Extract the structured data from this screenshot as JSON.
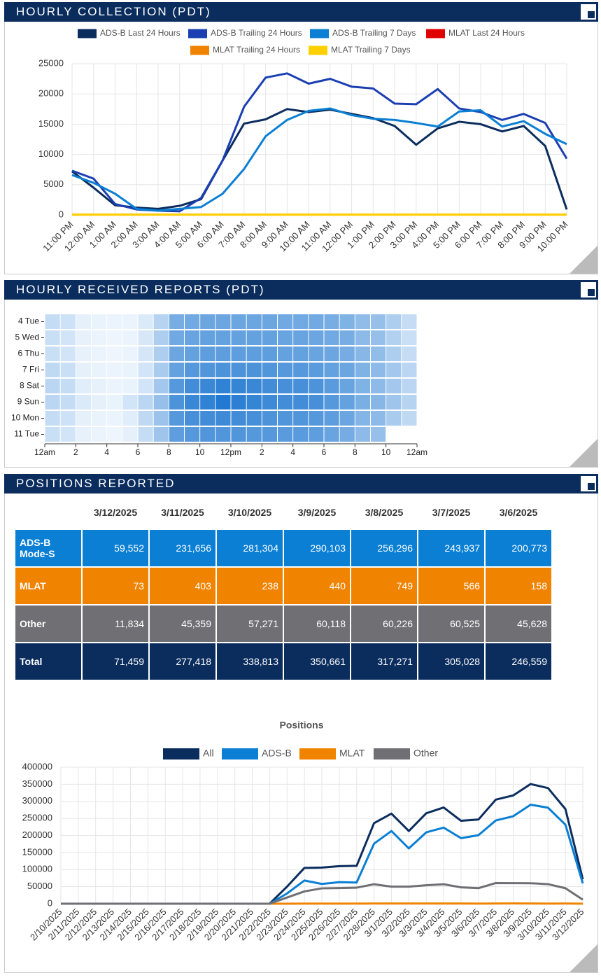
{
  "panels": [
    {
      "title": "HOURLY COLLECTION (PDT)"
    },
    {
      "title": "HOURLY RECEIVED REPORTS (PDT)"
    },
    {
      "title": "POSITIONS REPORTED"
    }
  ],
  "chart_data": [
    {
      "type": "line",
      "legend": "top",
      "grid": true,
      "categories": [
        "11:00 PM",
        "12:00 AM",
        "1:00 AM",
        "2:00 AM",
        "3:00 AM",
        "4:00 AM",
        "5:00 AM",
        "6:00 AM",
        "7:00 AM",
        "8:00 AM",
        "9:00 AM",
        "10:00 AM",
        "11:00 AM",
        "12:00 PM",
        "1:00 PM",
        "2:00 PM",
        "3:00 PM",
        "4:00 PM",
        "5:00 PM",
        "6:00 PM",
        "7:00 PM",
        "8:00 PM",
        "9:00 PM",
        "10:00 PM"
      ],
      "ylim": [
        0,
        25000
      ],
      "yticks": [
        0,
        5000,
        10000,
        15000,
        20000,
        25000
      ],
      "series": [
        {
          "name": "ADS-B Last 24 Hours",
          "color": "#0b2d5e",
          "values": [
            7200,
            4500,
            1600,
            1200,
            1000,
            1500,
            2600,
            9000,
            15100,
            15800,
            17500,
            17000,
            17400,
            16700,
            16000,
            14700,
            11600,
            14300,
            15400,
            15000,
            13800,
            14700,
            11400,
            900
          ]
        },
        {
          "name": "ADS-B Trailing 24 Hours",
          "color": "#1b3fb2",
          "values": [
            7300,
            6000,
            1800,
            900,
            700,
            600,
            2800,
            9000,
            17900,
            22700,
            23400,
            21700,
            22500,
            21200,
            20900,
            18400,
            18300,
            20800,
            17600,
            17000,
            15700,
            16700,
            15200,
            9300
          ]
        },
        {
          "name": "ADS-B Trailing 7 Days",
          "color": "#0a7fd4",
          "values": [
            6600,
            5300,
            3500,
            1000,
            700,
            1000,
            1300,
            3500,
            7600,
            13000,
            15700,
            17200,
            17600,
            16500,
            15900,
            15700,
            15200,
            14600,
            17100,
            17300,
            14600,
            15500,
            13400,
            11700
          ]
        },
        {
          "name": "MLAT Last 24 Hours",
          "color": "#e00000",
          "values": [
            60,
            60,
            60,
            60,
            60,
            60,
            60,
            60,
            60,
            60,
            60,
            60,
            60,
            60,
            60,
            60,
            60,
            60,
            60,
            60,
            60,
            60,
            60,
            60
          ]
        },
        {
          "name": "MLAT Trailing 24 Hours",
          "color": "#f08300",
          "values": [
            50,
            50,
            50,
            50,
            50,
            50,
            50,
            50,
            50,
            50,
            50,
            50,
            50,
            50,
            50,
            50,
            50,
            50,
            50,
            50,
            50,
            50,
            50,
            50
          ]
        },
        {
          "name": "MLAT Trailing 7 Days",
          "color": "#ffd000",
          "values": [
            50,
            50,
            50,
            50,
            50,
            50,
            50,
            50,
            50,
            50,
            50,
            50,
            50,
            50,
            50,
            50,
            50,
            50,
            50,
            50,
            50,
            50,
            50,
            50
          ]
        }
      ]
    },
    {
      "type": "heatmap",
      "xlim": [
        0,
        24
      ],
      "zlim": [
        0,
        100
      ],
      "colors": [
        "#f7fbff",
        "#106ecd"
      ],
      "xticks": [
        {
          "value": 0,
          "label": "12am"
        },
        2,
        4,
        6,
        8,
        10,
        {
          "value": 12,
          "label": "12pm"
        },
        {
          "value": 14,
          "label": "2"
        },
        {
          "value": 16,
          "label": "4"
        },
        {
          "value": 18,
          "label": "6"
        },
        {
          "value": 20,
          "label": "8"
        },
        {
          "value": 22,
          "label": "10"
        },
        {
          "value": 24,
          "label": "12am"
        }
      ],
      "rows": [
        "4 Tue",
        "5 Wed",
        "6 Thu",
        "7 Fri",
        "8 Sat",
        "9 Sun",
        "10 Mon",
        "11 Tue"
      ],
      "values": [
        [
          22,
          18,
          8,
          6,
          5,
          5,
          12,
          28,
          55,
          58,
          60,
          60,
          60,
          60,
          60,
          58,
          58,
          58,
          55,
          52,
          45,
          42,
          32,
          22
        ],
        [
          20,
          16,
          7,
          5,
          4,
          5,
          14,
          32,
          58,
          62,
          64,
          64,
          64,
          64,
          64,
          62,
          62,
          60,
          58,
          55,
          46,
          42,
          30,
          20
        ],
        [
          20,
          16,
          7,
          5,
          4,
          5,
          15,
          32,
          60,
          64,
          66,
          66,
          66,
          66,
          66,
          64,
          64,
          62,
          60,
          56,
          48,
          44,
          32,
          22
        ],
        [
          24,
          20,
          8,
          6,
          5,
          6,
          16,
          34,
          64,
          70,
          72,
          74,
          74,
          74,
          72,
          70,
          70,
          68,
          64,
          60,
          52,
          46,
          36,
          26
        ],
        [
          26,
          22,
          10,
          7,
          5,
          6,
          16,
          36,
          70,
          78,
          82,
          86,
          84,
          82,
          78,
          76,
          76,
          74,
          68,
          62,
          52,
          46,
          36,
          26
        ],
        [
          26,
          22,
          12,
          8,
          6,
          16,
          26,
          42,
          74,
          82,
          86,
          92,
          88,
          84,
          80,
          78,
          78,
          76,
          70,
          64,
          54,
          48,
          38,
          28
        ],
        [
          22,
          18,
          8,
          6,
          5,
          10,
          24,
          40,
          70,
          76,
          78,
          80,
          78,
          76,
          74,
          72,
          72,
          70,
          66,
          60,
          50,
          46,
          34,
          24
        ],
        [
          20,
          16,
          7,
          5,
          4,
          8,
          22,
          38,
          66,
          70,
          72,
          72,
          72,
          70,
          70,
          68,
          68,
          66,
          62,
          56,
          46,
          42,
          null,
          null
        ]
      ]
    },
    {
      "type": "line",
      "title": "Positions",
      "legend": "top",
      "grid": true,
      "categories": [
        "2/10/2025",
        "2/11/2025",
        "2/12/2025",
        "2/13/2025",
        "2/14/2025",
        "2/15/2025",
        "2/16/2025",
        "2/17/2025",
        "2/18/2025",
        "2/19/2025",
        "2/20/2025",
        "2/21/2025",
        "2/22/2025",
        "2/23/2025",
        "2/24/2025",
        "2/25/2025",
        "2/26/2025",
        "2/27/2025",
        "2/28/2025",
        "3/1/2025",
        "3/2/2025",
        "3/3/2025",
        "3/4/2025",
        "3/5/2025",
        "3/6/2025",
        "3/7/2025",
        "3/8/2025",
        "3/9/2025",
        "3/10/2025",
        "3/11/2025",
        "3/12/2025"
      ],
      "ylim": [
        0,
        400000
      ],
      "yticks": [
        0,
        50000,
        100000,
        150000,
        200000,
        250000,
        300000,
        350000,
        400000
      ],
      "series": [
        {
          "name": "All",
          "color": "#0b2d5e",
          "values": [
            0,
            0,
            0,
            0,
            0,
            0,
            0,
            0,
            0,
            0,
            0,
            0,
            0,
            50000,
            105000,
            106000,
            110000,
            111000,
            236000,
            264000,
            213000,
            265000,
            282000,
            243000,
            246559,
            305028,
            317271,
            350661,
            338813,
            277418,
            71459
          ]
        },
        {
          "name": "ADS-B",
          "color": "#0a7fd4",
          "values": [
            0,
            0,
            0,
            0,
            0,
            0,
            0,
            0,
            0,
            0,
            0,
            0,
            0,
            30000,
            68000,
            58000,
            63000,
            62000,
            176000,
            213000,
            162000,
            209000,
            223000,
            192000,
            200773,
            243937,
            256296,
            290103,
            281304,
            231656,
            59552
          ]
        },
        {
          "name": "MLAT",
          "color": "#f08300",
          "values": [
            0,
            0,
            0,
            0,
            0,
            0,
            0,
            0,
            0,
            0,
            0,
            0,
            0,
            100,
            300,
            300,
            300,
            300,
            400,
            400,
            400,
            400,
            400,
            400,
            158,
            566,
            749,
            440,
            238,
            403,
            73
          ]
        },
        {
          "name": "Other",
          "color": "#6f6f74",
          "values": [
            0,
            0,
            0,
            0,
            0,
            0,
            0,
            0,
            0,
            0,
            0,
            0,
            0,
            18000,
            36000,
            45000,
            46000,
            47000,
            57000,
            50000,
            50000,
            54000,
            57000,
            48000,
            45628,
            60525,
            60226,
            60118,
            57271,
            45359,
            11834
          ]
        }
      ]
    }
  ],
  "table": {
    "columns": [
      "3/12/2025",
      "3/11/2025",
      "3/10/2025",
      "3/9/2025",
      "3/8/2025",
      "3/7/2025",
      "3/6/2025"
    ],
    "rows": [
      {
        "label": "ADS-B Mode-S",
        "color": "#0a7fd4",
        "values": [
          "59,552",
          "231,656",
          "281,304",
          "290,103",
          "256,296",
          "243,937",
          "200,773"
        ]
      },
      {
        "label": "MLAT",
        "color": "#f08300",
        "values": [
          "73",
          "403",
          "238",
          "440",
          "749",
          "566",
          "158"
        ]
      },
      {
        "label": "Other",
        "color": "#6f6f74",
        "values": [
          "11,834",
          "45,359",
          "57,271",
          "60,118",
          "60,226",
          "60,525",
          "45,628"
        ]
      },
      {
        "label": "Total",
        "color": "#0b2d5e",
        "values": [
          "71,459",
          "277,418",
          "338,813",
          "350,661",
          "317,271",
          "305,028",
          "246,559"
        ]
      }
    ]
  }
}
